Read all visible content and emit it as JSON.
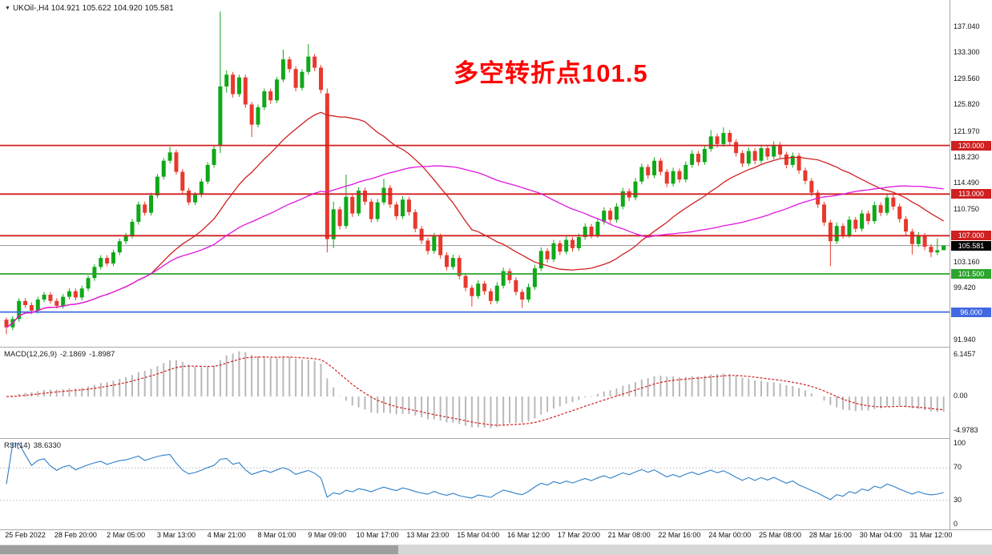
{
  "titlebar": {
    "readout": "UKOil-,H4 104.921 105.622 104.920 105.581"
  },
  "annotation": {
    "text": "多空转折点101.5",
    "color": "#FF0000"
  },
  "colors": {
    "candle_up": "#0FA818",
    "candle_down": "#E8392D",
    "ma_fast": "#D02020",
    "ma_slow": "#E016E0",
    "macd_hist": "#B9B9B9",
    "macd_signal": "#D02020",
    "rsi_line": "#2E7EC8",
    "current_price_line": "#9A9A9A",
    "current_price_badge": "#000000"
  },
  "chart_data": {
    "type": "candlestick",
    "symbol": "UKOil-",
    "timeframe": "H4",
    "ohlc": {
      "open": 104.921,
      "high": 105.622,
      "low": 104.92,
      "close": 105.581
    },
    "price_axis_ticks": [
      "137.040",
      "133.300",
      "129.560",
      "125.820",
      "121.970",
      "118.230",
      "114.490",
      "110.750",
      "103.160",
      "99.420",
      "91.940"
    ],
    "x_labels": [
      "25 Feb 2022",
      "28 Feb 20:00",
      "2 Mar 05:00",
      "3 Mar 13:00",
      "4 Mar 21:00",
      "8 Mar 01:00",
      "9 Mar 09:00",
      "10 Mar 17:00",
      "13 Mar 23:00",
      "15 Mar 04:00",
      "16 Mar 12:00",
      "17 Mar 20:00",
      "21 Mar 08:00",
      "22 Mar 16:00",
      "24 Mar 00:00",
      "25 Mar 08:00",
      "28 Mar 16:00",
      "30 Mar 04:00",
      "31 Mar 12:00"
    ],
    "hlines": [
      {
        "price": 120.0,
        "label": "120.000",
        "color": "#D02020"
      },
      {
        "price": 113.0,
        "label": "113.000",
        "color": "#D02020"
      },
      {
        "price": 107.0,
        "label": "107.000",
        "color": "#D02020"
      },
      {
        "price": 101.5,
        "label": "101.500",
        "color": "#2DA52D"
      },
      {
        "price": 96.0,
        "label": "96.000",
        "color": "#4169E1"
      }
    ],
    "current_price": {
      "value": 105.581,
      "label": "105.581"
    },
    "moving_averages": [
      {
        "period": 24,
        "color": "#D02020"
      },
      {
        "period": 52,
        "color": "#E016E0"
      }
    ],
    "macd": {
      "title": "MACD(12,26,9)",
      "value_main": "-2.1869",
      "value_signal": "-1.8987",
      "fast": 12,
      "slow": 26,
      "signal": 9,
      "axis_ticks": [
        "6.1457",
        "0.00",
        "-4.9783"
      ]
    },
    "rsi": {
      "title": "RSI(14)",
      "value": "38.6330",
      "period": 14,
      "axis_ticks": [
        "100",
        "70",
        "30",
        "0"
      ],
      "levels": [
        70,
        30
      ]
    },
    "candles": [
      [
        94.9,
        95.2,
        92.8,
        93.8
      ],
      [
        93.8,
        95.4,
        93.4,
        95.0
      ],
      [
        95.0,
        98.0,
        94.6,
        97.6
      ],
      [
        97.6,
        98.0,
        96.6,
        97.0
      ],
      [
        97.0,
        97.4,
        95.7,
        96.2
      ],
      [
        96.2,
        98.2,
        95.8,
        97.8
      ],
      [
        97.8,
        98.9,
        97.4,
        98.5
      ],
      [
        98.5,
        98.9,
        97.2,
        97.6
      ],
      [
        97.6,
        98.0,
        96.5,
        96.9
      ],
      [
        96.9,
        98.6,
        96.5,
        98.2
      ],
      [
        98.2,
        99.4,
        97.8,
        99.0
      ],
      [
        99.0,
        99.4,
        97.7,
        98.1
      ],
      [
        98.1,
        99.8,
        97.7,
        99.4
      ],
      [
        99.4,
        101.3,
        99.0,
        100.9
      ],
      [
        100.9,
        102.9,
        100.5,
        102.5
      ],
      [
        102.5,
        104.2,
        102.1,
        103.8
      ],
      [
        103.8,
        104.2,
        102.6,
        103.0
      ],
      [
        103.0,
        105.0,
        102.6,
        104.6
      ],
      [
        104.6,
        106.6,
        104.2,
        106.2
      ],
      [
        106.2,
        107.4,
        105.8,
        107.0
      ],
      [
        107.0,
        109.4,
        106.6,
        109.0
      ],
      [
        109.0,
        111.9,
        108.6,
        111.5
      ],
      [
        111.5,
        111.9,
        109.9,
        110.3
      ],
      [
        110.3,
        113.2,
        109.9,
        112.8
      ],
      [
        112.8,
        115.9,
        112.4,
        115.5
      ],
      [
        115.5,
        118.2,
        115.1,
        117.8
      ],
      [
        117.8,
        119.8,
        117.4,
        119.0
      ],
      [
        119.0,
        119.4,
        115.8,
        116.2
      ],
      [
        116.2,
        116.6,
        113.1,
        113.5
      ],
      [
        113.5,
        113.9,
        111.4,
        111.8
      ],
      [
        111.8,
        113.3,
        111.4,
        112.9
      ],
      [
        112.9,
        115.2,
        112.5,
        114.8
      ],
      [
        114.8,
        117.6,
        114.4,
        117.2
      ],
      [
        117.2,
        119.9,
        116.8,
        119.5
      ],
      [
        120.0,
        139.3,
        118.9,
        128.5
      ],
      [
        128.5,
        130.8,
        127.6,
        130.2
      ],
      [
        130.2,
        130.6,
        126.9,
        127.4
      ],
      [
        127.4,
        130.2,
        127.0,
        129.8
      ],
      [
        129.8,
        130.2,
        125.4,
        125.9
      ],
      [
        125.9,
        126.3,
        121.2,
        123.0
      ],
      [
        123.0,
        125.9,
        122.6,
        125.5
      ],
      [
        125.5,
        128.2,
        125.1,
        127.8
      ],
      [
        127.8,
        128.2,
        126.0,
        126.5
      ],
      [
        126.5,
        129.9,
        126.1,
        129.5
      ],
      [
        129.5,
        133.8,
        129.1,
        132.4
      ],
      [
        132.4,
        132.8,
        130.5,
        131.0
      ],
      [
        131.0,
        131.4,
        127.8,
        128.3
      ],
      [
        128.3,
        131.0,
        127.9,
        130.6
      ],
      [
        130.6,
        134.6,
        130.2,
        132.8
      ],
      [
        132.8,
        133.2,
        130.7,
        131.2
      ],
      [
        131.2,
        131.6,
        127.5,
        128.0
      ],
      [
        127.5,
        128.2,
        104.6,
        106.5
      ],
      [
        106.5,
        111.9,
        105.2,
        110.8
      ],
      [
        110.8,
        111.2,
        107.9,
        108.4
      ],
      [
        108.4,
        115.8,
        108.0,
        112.6
      ],
      [
        112.6,
        113.0,
        109.7,
        110.2
      ],
      [
        110.2,
        114.0,
        109.8,
        113.5
      ],
      [
        113.5,
        113.9,
        111.4,
        111.9
      ],
      [
        111.9,
        112.3,
        108.9,
        109.4
      ],
      [
        109.4,
        112.3,
        109.0,
        111.8
      ],
      [
        111.8,
        115.2,
        111.4,
        113.9
      ],
      [
        113.9,
        114.3,
        111.0,
        111.5
      ],
      [
        111.5,
        111.9,
        109.3,
        109.8
      ],
      [
        109.8,
        112.7,
        109.4,
        112.2
      ],
      [
        112.2,
        112.6,
        109.9,
        110.4
      ],
      [
        110.4,
        110.8,
        107.5,
        108.0
      ],
      [
        108.0,
        108.4,
        105.8,
        106.3
      ],
      [
        106.3,
        106.7,
        104.3,
        104.8
      ],
      [
        104.8,
        107.4,
        104.4,
        106.9
      ],
      [
        106.9,
        107.3,
        103.7,
        104.2
      ],
      [
        104.2,
        104.6,
        102.0,
        102.5
      ],
      [
        102.5,
        104.3,
        102.1,
        103.8
      ],
      [
        103.8,
        104.2,
        100.7,
        101.2
      ],
      [
        101.2,
        101.6,
        99.0,
        99.5
      ],
      [
        99.5,
        99.9,
        96.8,
        98.3
      ],
      [
        98.3,
        100.6,
        97.9,
        100.1
      ],
      [
        100.1,
        100.5,
        98.5,
        99.0
      ],
      [
        99.0,
        99.4,
        97.1,
        97.6
      ],
      [
        97.6,
        100.3,
        97.2,
        99.8
      ],
      [
        99.8,
        102.4,
        99.4,
        101.9
      ],
      [
        101.9,
        102.3,
        100.1,
        100.6
      ],
      [
        100.6,
        101.0,
        98.4,
        98.9
      ],
      [
        98.9,
        99.3,
        96.6,
        97.8
      ],
      [
        97.8,
        100.1,
        97.4,
        99.6
      ],
      [
        99.6,
        102.8,
        99.2,
        102.3
      ],
      [
        102.3,
        105.3,
        101.9,
        104.8
      ],
      [
        104.8,
        105.2,
        103.1,
        103.6
      ],
      [
        103.6,
        106.4,
        103.2,
        105.9
      ],
      [
        105.9,
        106.3,
        104.2,
        104.7
      ],
      [
        104.7,
        106.9,
        104.3,
        106.4
      ],
      [
        106.4,
        106.8,
        104.7,
        105.2
      ],
      [
        105.2,
        107.3,
        104.8,
        106.8
      ],
      [
        106.8,
        108.8,
        106.4,
        108.3
      ],
      [
        108.3,
        108.7,
        106.6,
        107.1
      ],
      [
        107.1,
        109.5,
        106.7,
        109.0
      ],
      [
        109.0,
        111.1,
        108.6,
        110.6
      ],
      [
        110.6,
        111.0,
        108.8,
        109.3
      ],
      [
        109.3,
        111.7,
        108.9,
        111.2
      ],
      [
        111.2,
        113.9,
        110.8,
        113.4
      ],
      [
        113.4,
        113.8,
        112.0,
        112.5
      ],
      [
        112.5,
        115.3,
        112.1,
        114.8
      ],
      [
        114.8,
        117.4,
        114.4,
        116.9
      ],
      [
        116.9,
        117.3,
        115.2,
        115.7
      ],
      [
        115.7,
        118.3,
        115.3,
        117.8
      ],
      [
        117.8,
        118.2,
        115.7,
        116.2
      ],
      [
        116.2,
        116.6,
        114.0,
        114.5
      ],
      [
        114.5,
        116.8,
        114.1,
        116.3
      ],
      [
        116.3,
        116.7,
        114.6,
        115.1
      ],
      [
        115.1,
        117.7,
        114.7,
        117.2
      ],
      [
        117.2,
        119.3,
        116.8,
        118.8
      ],
      [
        118.8,
        119.2,
        117.1,
        117.6
      ],
      [
        117.6,
        120.0,
        117.2,
        119.5
      ],
      [
        119.5,
        122.2,
        119.1,
        121.3
      ],
      [
        121.3,
        121.7,
        119.7,
        120.2
      ],
      [
        120.2,
        122.6,
        119.8,
        121.8
      ],
      [
        121.8,
        122.2,
        120.0,
        120.5
      ],
      [
        120.5,
        120.9,
        118.4,
        118.9
      ],
      [
        118.9,
        119.3,
        116.9,
        117.4
      ],
      [
        117.4,
        119.7,
        117.0,
        119.2
      ],
      [
        119.2,
        119.6,
        117.3,
        117.8
      ],
      [
        117.8,
        120.1,
        117.4,
        119.6
      ],
      [
        119.6,
        120.0,
        117.9,
        118.4
      ],
      [
        118.4,
        120.6,
        118.0,
        120.1
      ],
      [
        120.1,
        120.5,
        118.2,
        118.7
      ],
      [
        118.7,
        119.1,
        116.7,
        117.2
      ],
      [
        117.2,
        119.0,
        116.8,
        118.5
      ],
      [
        118.5,
        118.9,
        115.9,
        116.4
      ],
      [
        116.4,
        116.8,
        114.4,
        114.9
      ],
      [
        114.9,
        115.3,
        112.7,
        113.2
      ],
      [
        113.2,
        113.6,
        111.0,
        111.5
      ],
      [
        111.5,
        111.9,
        108.4,
        108.9
      ],
      [
        108.9,
        109.3,
        102.6,
        106.2
      ],
      [
        106.2,
        108.9,
        105.8,
        108.4
      ],
      [
        108.4,
        108.8,
        106.6,
        107.1
      ],
      [
        107.1,
        109.8,
        106.7,
        109.3
      ],
      [
        109.3,
        109.7,
        107.5,
        108.0
      ],
      [
        108.0,
        110.7,
        107.6,
        110.2
      ],
      [
        110.2,
        110.6,
        108.6,
        109.1
      ],
      [
        109.1,
        111.9,
        108.7,
        111.4
      ],
      [
        111.4,
        111.8,
        109.8,
        110.3
      ],
      [
        110.3,
        113.0,
        109.9,
        112.5
      ],
      [
        112.5,
        112.9,
        110.7,
        111.2
      ],
      [
        111.2,
        111.6,
        108.9,
        109.4
      ],
      [
        109.4,
        109.8,
        107.1,
        107.6
      ],
      [
        107.6,
        108.0,
        104.3,
        105.8
      ],
      [
        105.8,
        107.5,
        105.4,
        107.0
      ],
      [
        107.0,
        107.4,
        104.9,
        105.4
      ],
      [
        105.4,
        105.8,
        103.9,
        104.6
      ],
      [
        104.6,
        106.6,
        104.2,
        104.9
      ],
      [
        104.921,
        105.622,
        104.92,
        105.581
      ]
    ]
  }
}
